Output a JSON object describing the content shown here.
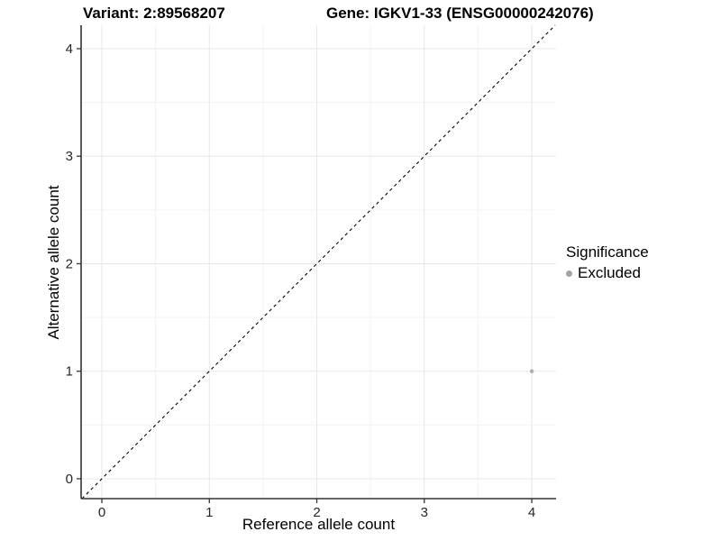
{
  "header": {
    "variant_title": "Variant: 2:89568207",
    "gene_title": "Gene: IGKV1-33 (ENSG00000242076)"
  },
  "chart_data": {
    "type": "scatter",
    "xlabel": "Reference allele count",
    "ylabel": "Alternative allele count",
    "xlim": [
      -0.193,
      4.226
    ],
    "ylim": [
      -0.185,
      4.218
    ],
    "x_ticks": [
      0,
      1,
      2,
      3,
      4
    ],
    "y_ticks": [
      0,
      1,
      2,
      3,
      4
    ],
    "grid": {
      "major": true,
      "minor": true,
      "major_color": "#e8e8e8",
      "minor_color": "#f3f3f3"
    },
    "reference_line": {
      "type": "identity",
      "style": "dashed",
      "color": "#000000"
    },
    "series": [
      {
        "name": "Excluded",
        "color": "#b3b3b3",
        "points": [
          {
            "x": 4,
            "y": 1
          }
        ]
      }
    ],
    "legend": {
      "position": "right",
      "title": "Significance",
      "items": [
        {
          "label": "Excluded",
          "color": "#a3a3a3"
        }
      ]
    },
    "axis_color": "#333333",
    "tick_label_color": "#262626",
    "background": "#ffffff"
  }
}
